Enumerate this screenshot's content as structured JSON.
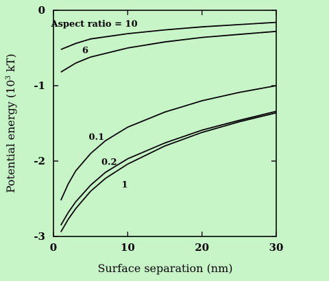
{
  "chart_data": {
    "type": "line",
    "title": "",
    "xlabel": "Surface separation (nm)",
    "ylabel": "Potential energy (10³ kT)",
    "ylabel_main": "Potential energy (10",
    "ylabel_sup": "3",
    "ylabel_tail": " kT)",
    "xlim": [
      0,
      30
    ],
    "ylim": [
      -3,
      0
    ],
    "xticks": [
      0,
      10,
      20,
      30
    ],
    "yticks": [
      0,
      -1,
      -2,
      -3
    ],
    "x_tick_labels": [
      "0",
      "10",
      "20",
      "30"
    ],
    "y_tick_labels": [
      "0",
      "-1",
      "-2",
      "-3"
    ],
    "grid": false,
    "series": [
      {
        "name": "Aspect ratio = 10",
        "x": [
          1,
          3,
          5,
          10,
          15,
          20,
          25,
          30
        ],
        "values": [
          -0.52,
          -0.44,
          -0.38,
          -0.31,
          -0.26,
          -0.22,
          -0.19,
          -0.16
        ]
      },
      {
        "name": "6",
        "x": [
          1,
          3,
          5,
          10,
          15,
          20,
          25,
          30
        ],
        "values": [
          -0.82,
          -0.7,
          -0.62,
          -0.5,
          -0.42,
          -0.36,
          -0.32,
          -0.28
        ]
      },
      {
        "name": "0.1",
        "x": [
          1,
          2,
          3,
          5,
          7,
          10,
          15,
          20,
          25,
          30
        ],
        "values": [
          -2.52,
          -2.3,
          -2.13,
          -1.9,
          -1.73,
          -1.55,
          -1.35,
          -1.2,
          -1.09,
          -1.0
        ]
      },
      {
        "name": "0.2",
        "x": [
          1,
          2,
          3,
          5,
          7,
          10,
          15,
          20,
          25,
          30
        ],
        "values": [
          -2.85,
          -2.68,
          -2.54,
          -2.32,
          -2.15,
          -1.97,
          -1.76,
          -1.59,
          -1.46,
          -1.34
        ]
      },
      {
        "name": "1",
        "x": [
          1,
          2,
          3,
          5,
          7,
          10,
          15,
          20,
          25,
          30
        ],
        "values": [
          -2.94,
          -2.77,
          -2.63,
          -2.4,
          -2.23,
          -2.04,
          -1.8,
          -1.62,
          -1.48,
          -1.36
        ]
      }
    ]
  }
}
